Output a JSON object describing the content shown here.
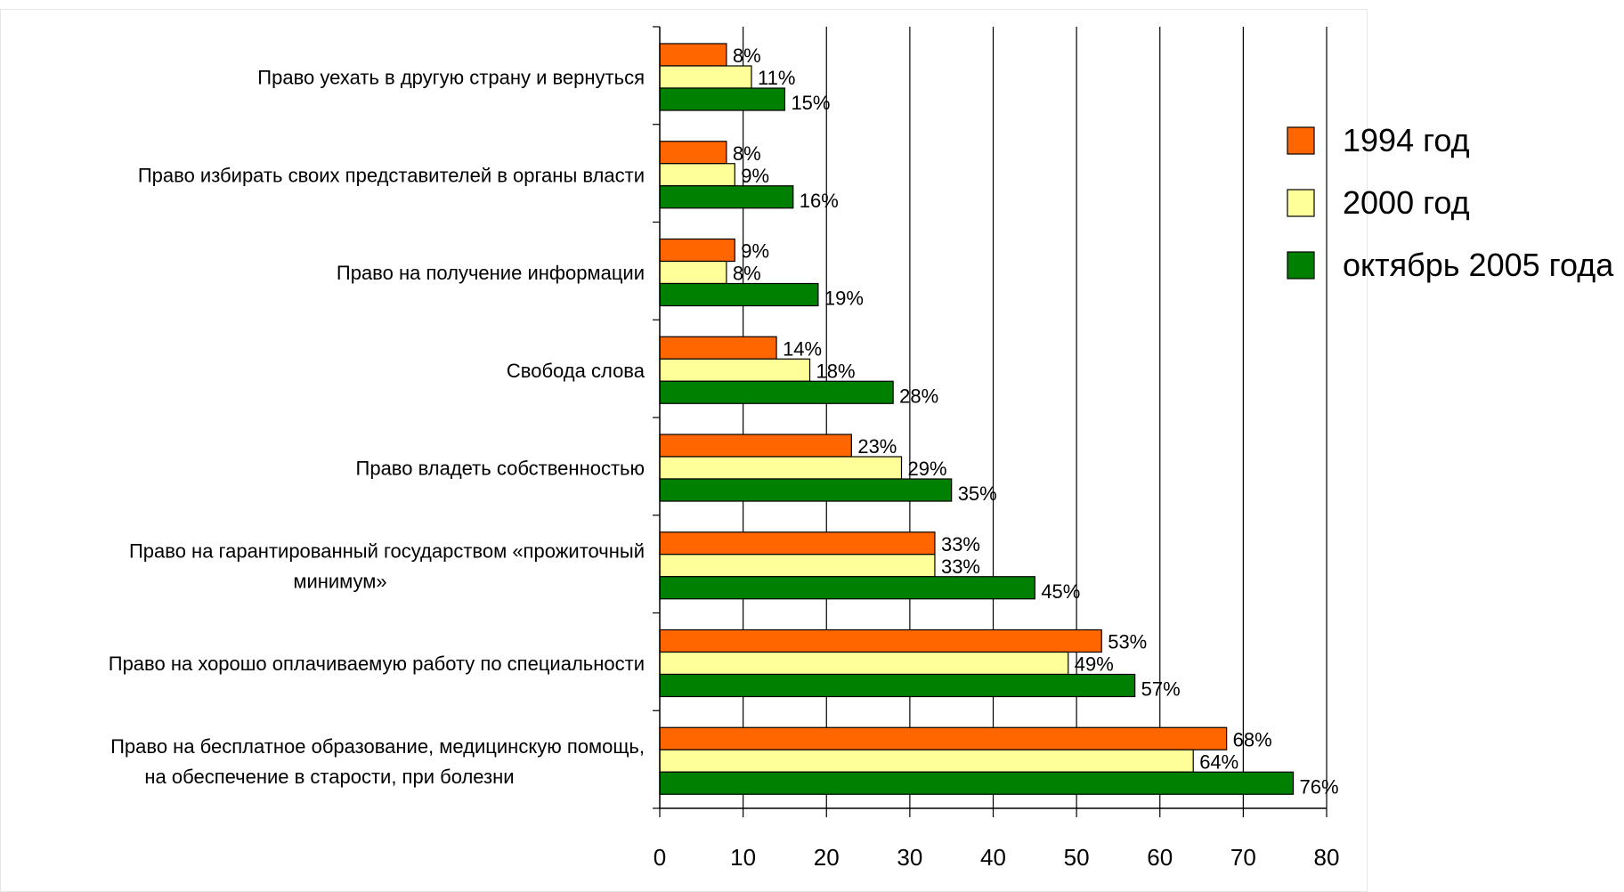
{
  "chart_data": {
    "type": "bar",
    "orientation": "horizontal",
    "categories": [
      [
        "Право уехать в другую страну и вернуться"
      ],
      [
        "Право избирать своих представителей в органы власти"
      ],
      [
        "Право на получение информации"
      ],
      [
        "Свобода слова"
      ],
      [
        "Право владеть собственностью"
      ],
      [
        "Право на гарантированный государством «прожиточный",
        "минимум»"
      ],
      [
        "Право на хорошо оплачиваемую работу по специальности"
      ],
      [
        "Право на бесплатное образование, медицинскую помощь,",
        "на обеспечение в старости, при болезни"
      ]
    ],
    "series": [
      {
        "name": "1994 год",
        "color": "#ff6600",
        "values": [
          8,
          8,
          9,
          14,
          23,
          33,
          53,
          68
        ],
        "labels": [
          "8%",
          "8%",
          "9%",
          "14%",
          "23%",
          "33%",
          "53%",
          "68%"
        ]
      },
      {
        "name": "2000 год",
        "color": "#ffff99",
        "values": [
          11,
          9,
          8,
          18,
          29,
          33,
          49,
          64
        ],
        "labels": [
          "11%",
          "9%",
          "8%",
          "18%",
          "29%",
          "33%",
          "49%",
          "64%"
        ]
      },
      {
        "name": "октябрь 2005 года",
        "color": "#008000",
        "values": [
          15,
          16,
          19,
          28,
          35,
          45,
          57,
          76
        ],
        "labels": [
          "15%",
          "16%",
          "19%",
          "28%",
          "35%",
          "45%",
          "57%",
          "76%"
        ]
      }
    ],
    "xlim": [
      0,
      80
    ],
    "xticks": [
      0,
      10,
      20,
      30,
      40,
      50,
      60,
      70,
      80
    ],
    "xtick_labels": [
      "0",
      "10",
      "20",
      "30",
      "40",
      "50",
      "60",
      "70",
      "80"
    ],
    "grid": true,
    "legend_position": "right"
  }
}
